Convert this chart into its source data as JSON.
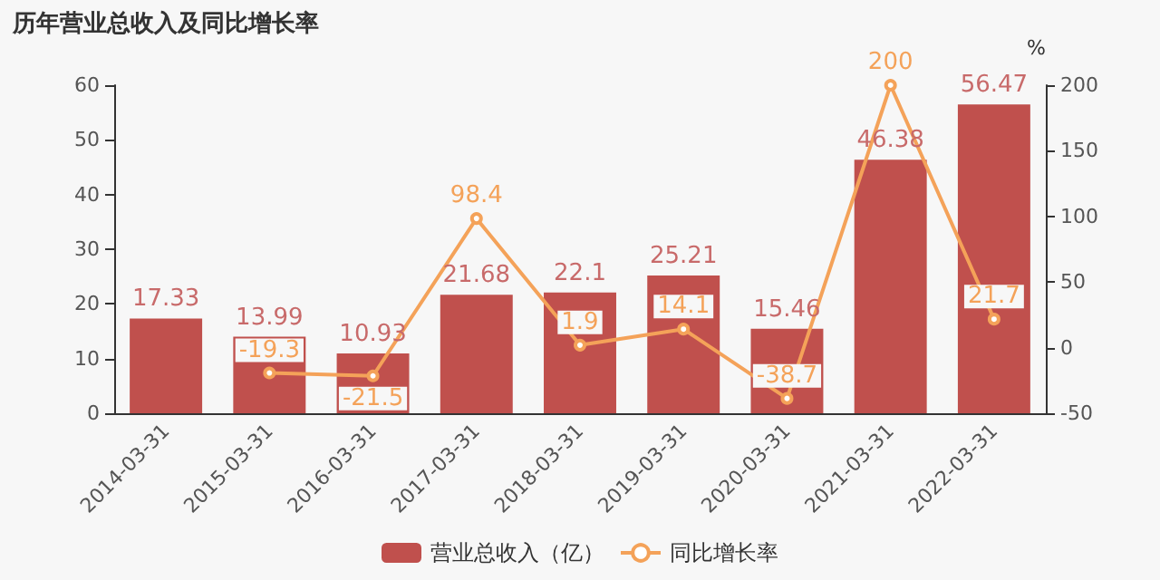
{
  "chart_data": {
    "type": "bar",
    "title": "历年营业总收入及同比增长率",
    "y2label": "%",
    "categories": [
      "2014-03-31",
      "2015-03-31",
      "2016-03-31",
      "2017-03-31",
      "2018-03-31",
      "2019-03-31",
      "2020-03-31",
      "2021-03-31",
      "2022-03-31"
    ],
    "series": [
      {
        "name": "营业总收入（亿）",
        "color": "#c0504d",
        "values": [
          17.33,
          13.99,
          10.93,
          21.68,
          22.1,
          25.21,
          15.46,
          46.38,
          56.47
        ]
      },
      {
        "name": "同比增长率",
        "type": "line",
        "axis": "y2",
        "color": "#f4a259",
        "values": [
          null,
          -19.3,
          -21.5,
          98.4,
          1.9,
          14.1,
          -38.7,
          200,
          21.7
        ]
      }
    ],
    "ylim": [
      0,
      60
    ],
    "yticks": [
      0,
      10,
      20,
      30,
      40,
      50,
      60
    ],
    "y2lim": [
      -50,
      200
    ],
    "y2ticks": [
      -50,
      0,
      50,
      100,
      150,
      200
    ],
    "data_labels": true,
    "legend": "bottom",
    "grid": false,
    "marker": "circle"
  }
}
